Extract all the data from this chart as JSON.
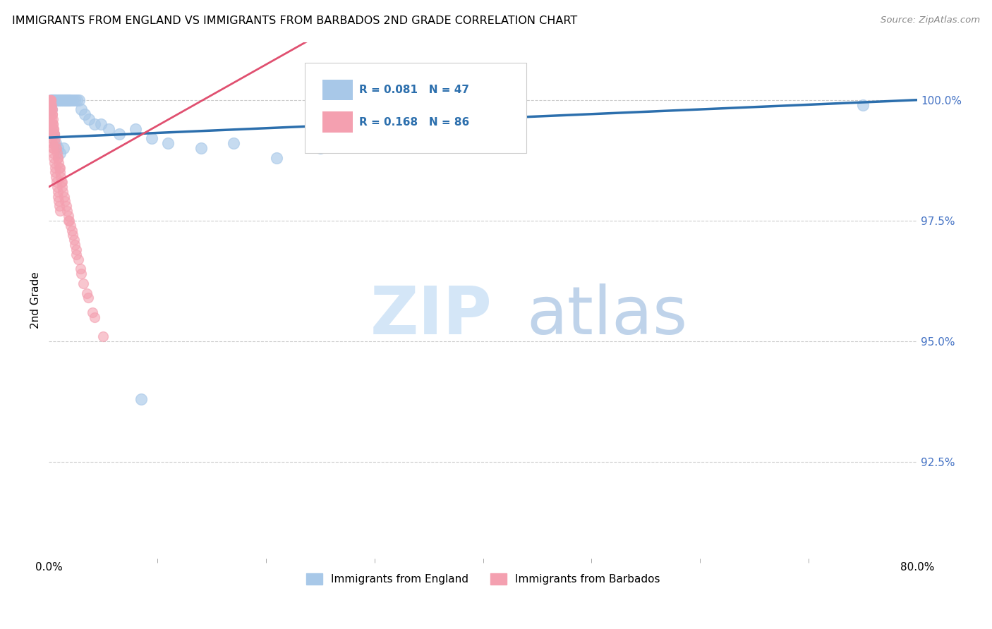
{
  "title": "IMMIGRANTS FROM ENGLAND VS IMMIGRANTS FROM BARBADOS 2ND GRADE CORRELATION CHART",
  "source": "Source: ZipAtlas.com",
  "ylabel": "2nd Grade",
  "yticks": [
    100.0,
    97.5,
    95.0,
    92.5
  ],
  "ytick_labels": [
    "100.0%",
    "97.5%",
    "95.0%",
    "92.5%"
  ],
  "xmin": 0.0,
  "xmax": 80.0,
  "ymin": 90.5,
  "ymax": 101.2,
  "england_R": 0.081,
  "england_N": 47,
  "barbados_R": 0.168,
  "barbados_N": 86,
  "england_color": "#a8c8e8",
  "barbados_color": "#f4a0b0",
  "england_line_color": "#2c6fad",
  "barbados_line_color": "#e05070",
  "england_line_x0": 0.0,
  "england_line_y0": 99.22,
  "england_line_x1": 80.0,
  "england_line_y1": 100.0,
  "barbados_line_x0": 0.0,
  "barbados_line_y0": 98.2,
  "barbados_line_x1": 15.0,
  "barbados_line_y1": 100.1,
  "england_scatter_x": [
    0.2,
    0.3,
    0.4,
    0.5,
    0.6,
    0.7,
    0.8,
    0.9,
    1.0,
    1.1,
    1.2,
    1.3,
    1.4,
    1.5,
    1.6,
    1.7,
    1.8,
    1.9,
    2.0,
    2.2,
    2.4,
    2.6,
    2.8,
    3.0,
    3.3,
    3.7,
    4.2,
    4.8,
    5.5,
    6.5,
    8.0,
    9.5,
    11.0,
    14.0,
    17.0,
    21.0,
    25.0,
    30.0,
    38.0,
    75.0,
    0.25,
    0.45,
    0.65,
    0.85,
    1.05,
    1.35,
    8.5
  ],
  "england_scatter_y": [
    100.0,
    100.0,
    100.0,
    100.0,
    100.0,
    100.0,
    100.0,
    100.0,
    100.0,
    100.0,
    100.0,
    100.0,
    100.0,
    100.0,
    100.0,
    100.0,
    100.0,
    100.0,
    100.0,
    100.0,
    100.0,
    100.0,
    100.0,
    99.8,
    99.7,
    99.6,
    99.5,
    99.5,
    99.4,
    99.3,
    99.4,
    99.2,
    99.1,
    99.0,
    99.1,
    98.8,
    99.0,
    99.1,
    99.5,
    99.9,
    99.8,
    99.3,
    99.1,
    99.0,
    98.9,
    99.0,
    93.8
  ],
  "barbados_scatter_x": [
    0.05,
    0.08,
    0.1,
    0.12,
    0.15,
    0.18,
    0.2,
    0.22,
    0.25,
    0.28,
    0.3,
    0.32,
    0.35,
    0.38,
    0.4,
    0.42,
    0.45,
    0.48,
    0.5,
    0.55,
    0.6,
    0.65,
    0.7,
    0.75,
    0.8,
    0.85,
    0.9,
    0.95,
    1.0,
    1.05,
    1.1,
    1.15,
    1.2,
    1.3,
    1.4,
    1.5,
    1.6,
    1.7,
    1.8,
    1.9,
    2.0,
    2.1,
    2.2,
    2.3,
    2.4,
    2.5,
    2.7,
    2.9,
    3.2,
    3.6,
    4.2,
    5.0,
    0.1,
    0.15,
    0.2,
    0.25,
    0.3,
    0.35,
    0.4,
    0.45,
    0.5,
    0.55,
    0.6,
    0.65,
    0.7,
    0.75,
    0.8,
    0.85,
    0.9,
    0.95,
    1.0,
    0.12,
    0.22,
    0.32,
    1.8,
    2.5,
    3.0,
    3.5,
    4.0,
    0.15,
    0.18,
    1.2,
    0.22,
    0.28,
    0.33,
    0.38
  ],
  "barbados_scatter_y": [
    100.0,
    100.0,
    100.0,
    100.0,
    100.0,
    100.0,
    100.0,
    99.9,
    99.8,
    99.8,
    99.7,
    99.7,
    99.6,
    99.5,
    99.5,
    99.4,
    99.4,
    99.3,
    99.3,
    99.2,
    99.1,
    99.0,
    99.0,
    98.9,
    98.8,
    98.8,
    98.7,
    98.6,
    98.6,
    98.5,
    98.4,
    98.3,
    98.3,
    98.1,
    98.0,
    97.9,
    97.8,
    97.7,
    97.6,
    97.5,
    97.4,
    97.3,
    97.2,
    97.1,
    97.0,
    96.9,
    96.7,
    96.5,
    96.2,
    95.9,
    95.5,
    95.1,
    99.5,
    99.4,
    99.3,
    99.2,
    99.1,
    99.0,
    98.9,
    98.8,
    98.7,
    98.6,
    98.5,
    98.4,
    98.3,
    98.2,
    98.1,
    98.0,
    97.9,
    97.8,
    97.7,
    99.8,
    99.6,
    99.4,
    97.5,
    96.8,
    96.4,
    96.0,
    95.6,
    99.9,
    99.7,
    98.2,
    99.5,
    99.3,
    99.1,
    99.0
  ]
}
